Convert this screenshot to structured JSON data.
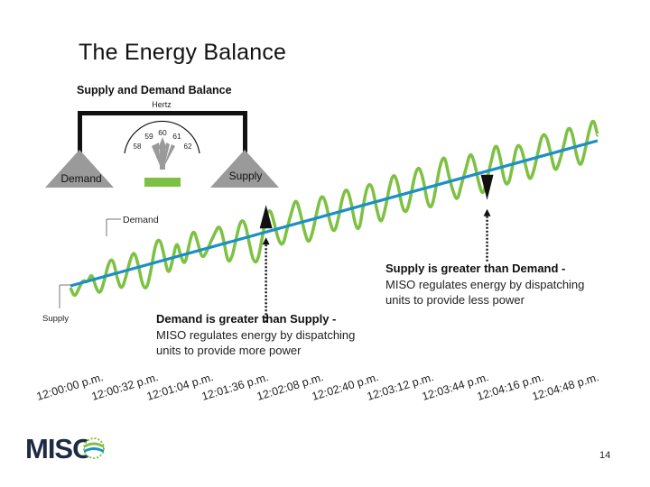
{
  "slide": {
    "title": "The Energy Balance",
    "page_number": "14",
    "logo_text": "MISO"
  },
  "balance_diagram": {
    "title": "Supply and Demand Balance",
    "hertz_label": "Hertz",
    "ticks": [
      "58",
      "59",
      "60",
      "61",
      "62"
    ],
    "left_label": "Demand",
    "right_label": "Supply"
  },
  "annotations": {
    "supply_greater": {
      "heading": "Supply is greater than Demand -",
      "lines": [
        "MISO regulates energy by dispatching",
        "units to provide less power"
      ]
    },
    "demand_greater": {
      "heading": "Demand is greater than Supply -",
      "lines": [
        "MISO regulates energy by dispatching",
        "units to provide more power"
      ]
    }
  },
  "colors": {
    "demand_line": "#7dc142",
    "supply_line": "#1b8fc6",
    "balance_gray": "#9a9a9a",
    "balance_green": "#7dc142",
    "logo_dark": "#1f2a44",
    "logo_green": "#7dc142",
    "logo_blue": "#1b8fc6"
  },
  "chart_data": {
    "type": "line",
    "title": "",
    "x_tick_labels": [
      "12:00:00 p.m.",
      "12:00:32 p.m.",
      "12:01:04 p.m.",
      "12:01:36 p.m.",
      "12:02:08 p.m.",
      "12:02:40 p.m.",
      "12:03:12 p.m.",
      "12:03:44 p.m.",
      "12:04:16 p.m.",
      "12:04:48 p.m."
    ],
    "series": [
      {
        "name": "Demand",
        "label": "Demand"
      },
      {
        "name": "Supply",
        "label": "Supply"
      }
    ],
    "supply_trend": {
      "start": 0,
      "end": 100
    },
    "demand_samples": [
      -2,
      -14,
      -5,
      3,
      -2,
      8,
      -10,
      -18,
      -4,
      14,
      17,
      -6,
      -20,
      -8,
      10,
      19,
      2,
      -22,
      -26,
      -6,
      20,
      25,
      6,
      -18,
      -4,
      18,
      -2,
      -12,
      12,
      25,
      8,
      -10,
      -4,
      6,
      14,
      22,
      6,
      -22,
      -18,
      2,
      20,
      18,
      -6,
      -28,
      -30,
      -8,
      18,
      24,
      6,
      -14,
      -20,
      -2,
      14,
      28,
      12,
      -10,
      -26,
      -14,
      8,
      24,
      16,
      -8,
      -22,
      -8,
      16,
      24,
      8,
      -20,
      -26,
      4,
      22,
      18,
      -8,
      -26,
      -12,
      12,
      26,
      14,
      -14,
      -22,
      -6,
      18,
      26,
      10,
      -18,
      -24,
      -2,
      22,
      30,
      6,
      -12,
      -24,
      -6,
      8,
      26,
      14,
      -10,
      -26,
      -8,
      10,
      28,
      14,
      -16,
      -22,
      -2,
      20,
      16,
      -4,
      -24,
      -14,
      6,
      24,
      20,
      0,
      -22,
      -12,
      4,
      24,
      18,
      -10,
      -24,
      -8,
      14,
      26,
      6
    ],
    "demand_value_range": [
      -34,
      34
    ],
    "markers": [
      {
        "id": "demand-greater",
        "sample_index": 46,
        "direction": "up"
      },
      {
        "id": "supply-greater",
        "sample_index": 98,
        "direction": "down"
      }
    ],
    "legend": "labels at left ends of lines"
  }
}
